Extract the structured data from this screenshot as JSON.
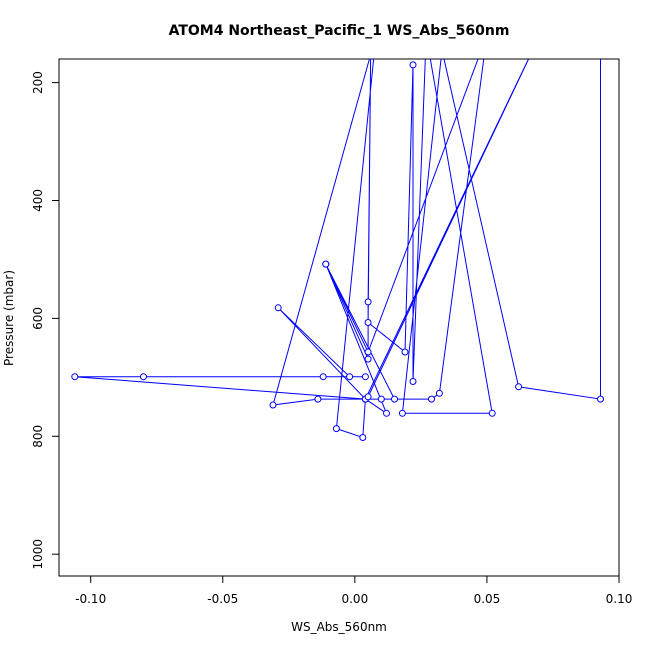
{
  "chart_data": {
    "type": "line",
    "title": "ATOM4 Northeast_Pacific_1 WS_Abs_560nm",
    "xlabel": "WS_Abs_560nm",
    "ylabel": "Pressure (mbar)",
    "xlim": [
      -0.112,
      0.1
    ],
    "ylim": [
      1037,
      160
    ],
    "y_inverted": true,
    "x_ticks": [
      -0.1,
      -0.05,
      0.0,
      0.05,
      0.1
    ],
    "x_tick_labels": [
      "-0.10",
      "-0.05",
      "0.00",
      "0.05",
      "0.10"
    ],
    "y_ticks": [
      200,
      400,
      600,
      800,
      1000
    ],
    "y_tick_labels": [
      "200",
      "400",
      "600",
      "800",
      "1000"
    ],
    "grid": false,
    "series": [
      {
        "color": "#0000ff",
        "marker": "open-circle",
        "points": [
          [
            0.093,
            120
          ],
          [
            0.093,
            737
          ],
          [
            0.062,
            716
          ],
          [
            0.033,
            145
          ],
          [
            0.018,
            761
          ],
          [
            0.052,
            761
          ],
          [
            0.027,
            120
          ],
          [
            0.022,
            707
          ],
          [
            0.022,
            170
          ],
          [
            0.019,
            657
          ],
          [
            0.005,
            607
          ],
          [
            0.006,
            145
          ],
          [
            0.005,
            572
          ],
          [
            0.005,
            669
          ],
          [
            -0.011,
            508
          ],
          [
            0.015,
            737
          ],
          [
            0.01,
            737
          ],
          [
            0.004,
            737
          ],
          [
            0.012,
            761
          ],
          [
            -0.011,
            508
          ],
          [
            0.005,
            657
          ],
          [
            0.05,
            120
          ],
          [
            0.032,
            727
          ],
          [
            0.029,
            737
          ],
          [
            -0.014,
            737
          ],
          [
            -0.031,
            747
          ],
          [
            0.008,
            120
          ],
          [
            -0.007,
            787
          ],
          [
            0.003,
            802
          ],
          [
            0.004,
            737
          ],
          [
            -0.106,
            699
          ],
          [
            -0.08,
            699
          ],
          [
            -0.012,
            699
          ],
          [
            0.004,
            699
          ],
          [
            -0.002,
            699
          ],
          [
            -0.029,
            582
          ],
          [
            0.004,
            737
          ],
          [
            0.07,
            120
          ],
          [
            0.005,
            733
          ]
        ],
        "open_point_index_ranges": "all points except off-chart endpoints"
      }
    ]
  }
}
